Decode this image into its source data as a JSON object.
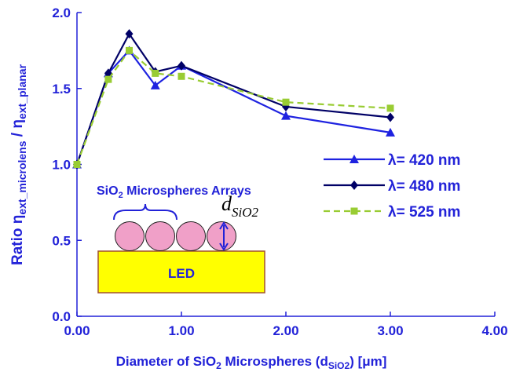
{
  "chart_data": {
    "type": "line",
    "x_label": [
      "Diameter of SiO",
      "2",
      " Microspheres (d",
      "SiO2",
      ") [μm]"
    ],
    "y_label": [
      "Ratio η",
      "ext_microlens",
      " / η",
      "ext_planar"
    ],
    "x": [
      0,
      0.3,
      0.5,
      0.75,
      1.0,
      2.0,
      3.0
    ],
    "series": [
      {
        "name": "λ= 420 nm",
        "color": "#1e22e0",
        "marker": "triangle",
        "dash": false,
        "values": [
          1.0,
          1.6,
          1.75,
          1.52,
          1.65,
          1.32,
          1.21
        ]
      },
      {
        "name": "λ= 480 nm",
        "color": "#000066",
        "marker": "diamond",
        "dash": false,
        "values": [
          1.0,
          1.6,
          1.86,
          1.61,
          1.65,
          1.38,
          1.31
        ]
      },
      {
        "name": "λ= 525 nm",
        "color": "#99cc33",
        "marker": "square",
        "dash": true,
        "values": [
          1.0,
          1.56,
          1.75,
          1.6,
          1.58,
          1.41,
          1.37
        ]
      }
    ],
    "xlim": [
      0,
      4
    ],
    "ylim": [
      0,
      2
    ],
    "xticks": [
      {
        "value": 0,
        "label": "0.00"
      },
      {
        "value": 1,
        "label": "1.00"
      },
      {
        "value": 2,
        "label": "2.00"
      },
      {
        "value": 3,
        "label": "3.00"
      },
      {
        "value": 4,
        "label": "4.00"
      }
    ],
    "yticks": [
      {
        "value": 0,
        "label": "0.0"
      },
      {
        "value": 0.5,
        "label": "0.5"
      },
      {
        "value": 1,
        "label": "1.0"
      },
      {
        "value": 1.5,
        "label": "1.5"
      },
      {
        "value": 2,
        "label": "2.0"
      }
    ],
    "inset": {
      "arrays_label": [
        "SiO",
        "2",
        " Microspheres Arrays"
      ],
      "led": "LED",
      "d_label": [
        "d",
        "SiO2"
      ]
    }
  }
}
